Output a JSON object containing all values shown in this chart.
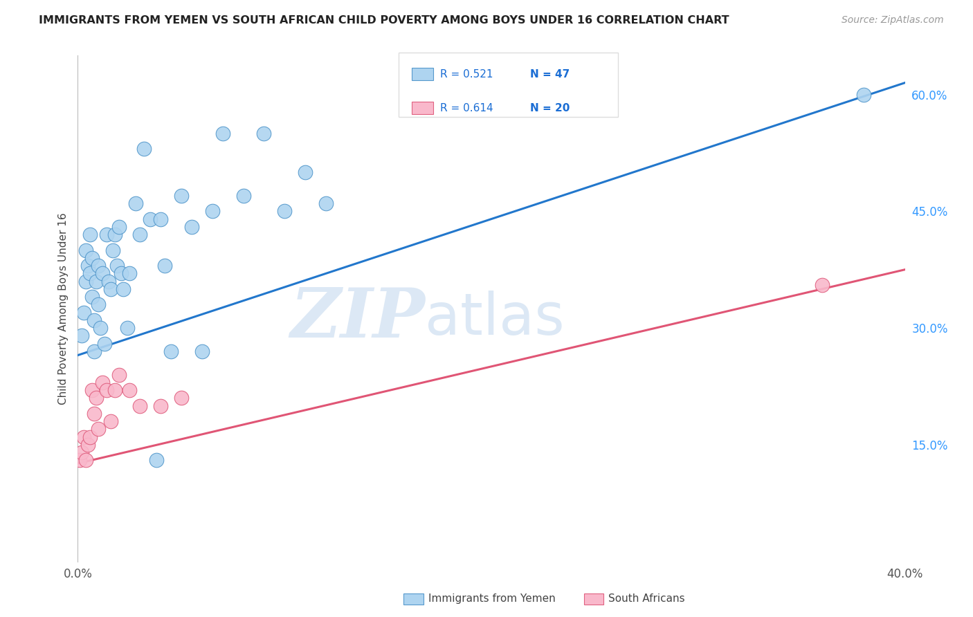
{
  "title": "IMMIGRANTS FROM YEMEN VS SOUTH AFRICAN CHILD POVERTY AMONG BOYS UNDER 16 CORRELATION CHART",
  "source": "Source: ZipAtlas.com",
  "ylabel": "Child Poverty Among Boys Under 16",
  "xlim": [
    0.0,
    0.4
  ],
  "ylim": [
    0.0,
    0.65
  ],
  "x_ticks": [
    0.0,
    0.08,
    0.16,
    0.24,
    0.32,
    0.4
  ],
  "x_tick_labels": [
    "0.0%",
    "",
    "",
    "",
    "",
    "40.0%"
  ],
  "y_ticks_right": [
    0.15,
    0.3,
    0.45,
    0.6
  ],
  "y_tick_labels_right": [
    "15.0%",
    "30.0%",
    "45.0%",
    "60.0%"
  ],
  "blue_scatter_x": [
    0.002,
    0.003,
    0.004,
    0.004,
    0.005,
    0.006,
    0.006,
    0.007,
    0.007,
    0.008,
    0.008,
    0.009,
    0.01,
    0.01,
    0.011,
    0.012,
    0.013,
    0.014,
    0.015,
    0.016,
    0.017,
    0.018,
    0.019,
    0.02,
    0.021,
    0.022,
    0.024,
    0.025,
    0.028,
    0.03,
    0.032,
    0.035,
    0.038,
    0.04,
    0.042,
    0.045,
    0.05,
    0.055,
    0.06,
    0.065,
    0.07,
    0.08,
    0.09,
    0.1,
    0.11,
    0.12,
    0.38
  ],
  "blue_scatter_y": [
    0.29,
    0.32,
    0.36,
    0.4,
    0.38,
    0.37,
    0.42,
    0.39,
    0.34,
    0.27,
    0.31,
    0.36,
    0.33,
    0.38,
    0.3,
    0.37,
    0.28,
    0.42,
    0.36,
    0.35,
    0.4,
    0.42,
    0.38,
    0.43,
    0.37,
    0.35,
    0.3,
    0.37,
    0.46,
    0.42,
    0.53,
    0.44,
    0.13,
    0.44,
    0.38,
    0.27,
    0.47,
    0.43,
    0.27,
    0.45,
    0.55,
    0.47,
    0.55,
    0.45,
    0.5,
    0.46,
    0.6
  ],
  "pink_scatter_x": [
    0.001,
    0.002,
    0.003,
    0.004,
    0.005,
    0.006,
    0.007,
    0.008,
    0.009,
    0.01,
    0.012,
    0.014,
    0.016,
    0.018,
    0.02,
    0.025,
    0.03,
    0.04,
    0.05,
    0.36
  ],
  "pink_scatter_y": [
    0.13,
    0.14,
    0.16,
    0.13,
    0.15,
    0.16,
    0.22,
    0.19,
    0.21,
    0.17,
    0.23,
    0.22,
    0.18,
    0.22,
    0.24,
    0.22,
    0.2,
    0.2,
    0.21,
    0.355
  ],
  "blue_line_x": [
    0.0,
    0.4
  ],
  "blue_line_y": [
    0.265,
    0.615
  ],
  "pink_line_x": [
    0.0,
    0.4
  ],
  "pink_line_y": [
    0.126,
    0.375
  ],
  "blue_color": "#aed4f0",
  "pink_color": "#f9b8cb",
  "blue_edge_color": "#5599cc",
  "pink_edge_color": "#e06080",
  "blue_line_color": "#2277cc",
  "pink_line_color": "#e05575",
  "legend_value_color": "#1a6dd4",
  "background_color": "#ffffff",
  "grid_color": "#cccccc",
  "watermark_zip": "ZIP",
  "watermark_atlas": "atlas",
  "watermark_color": "#dce8f5"
}
